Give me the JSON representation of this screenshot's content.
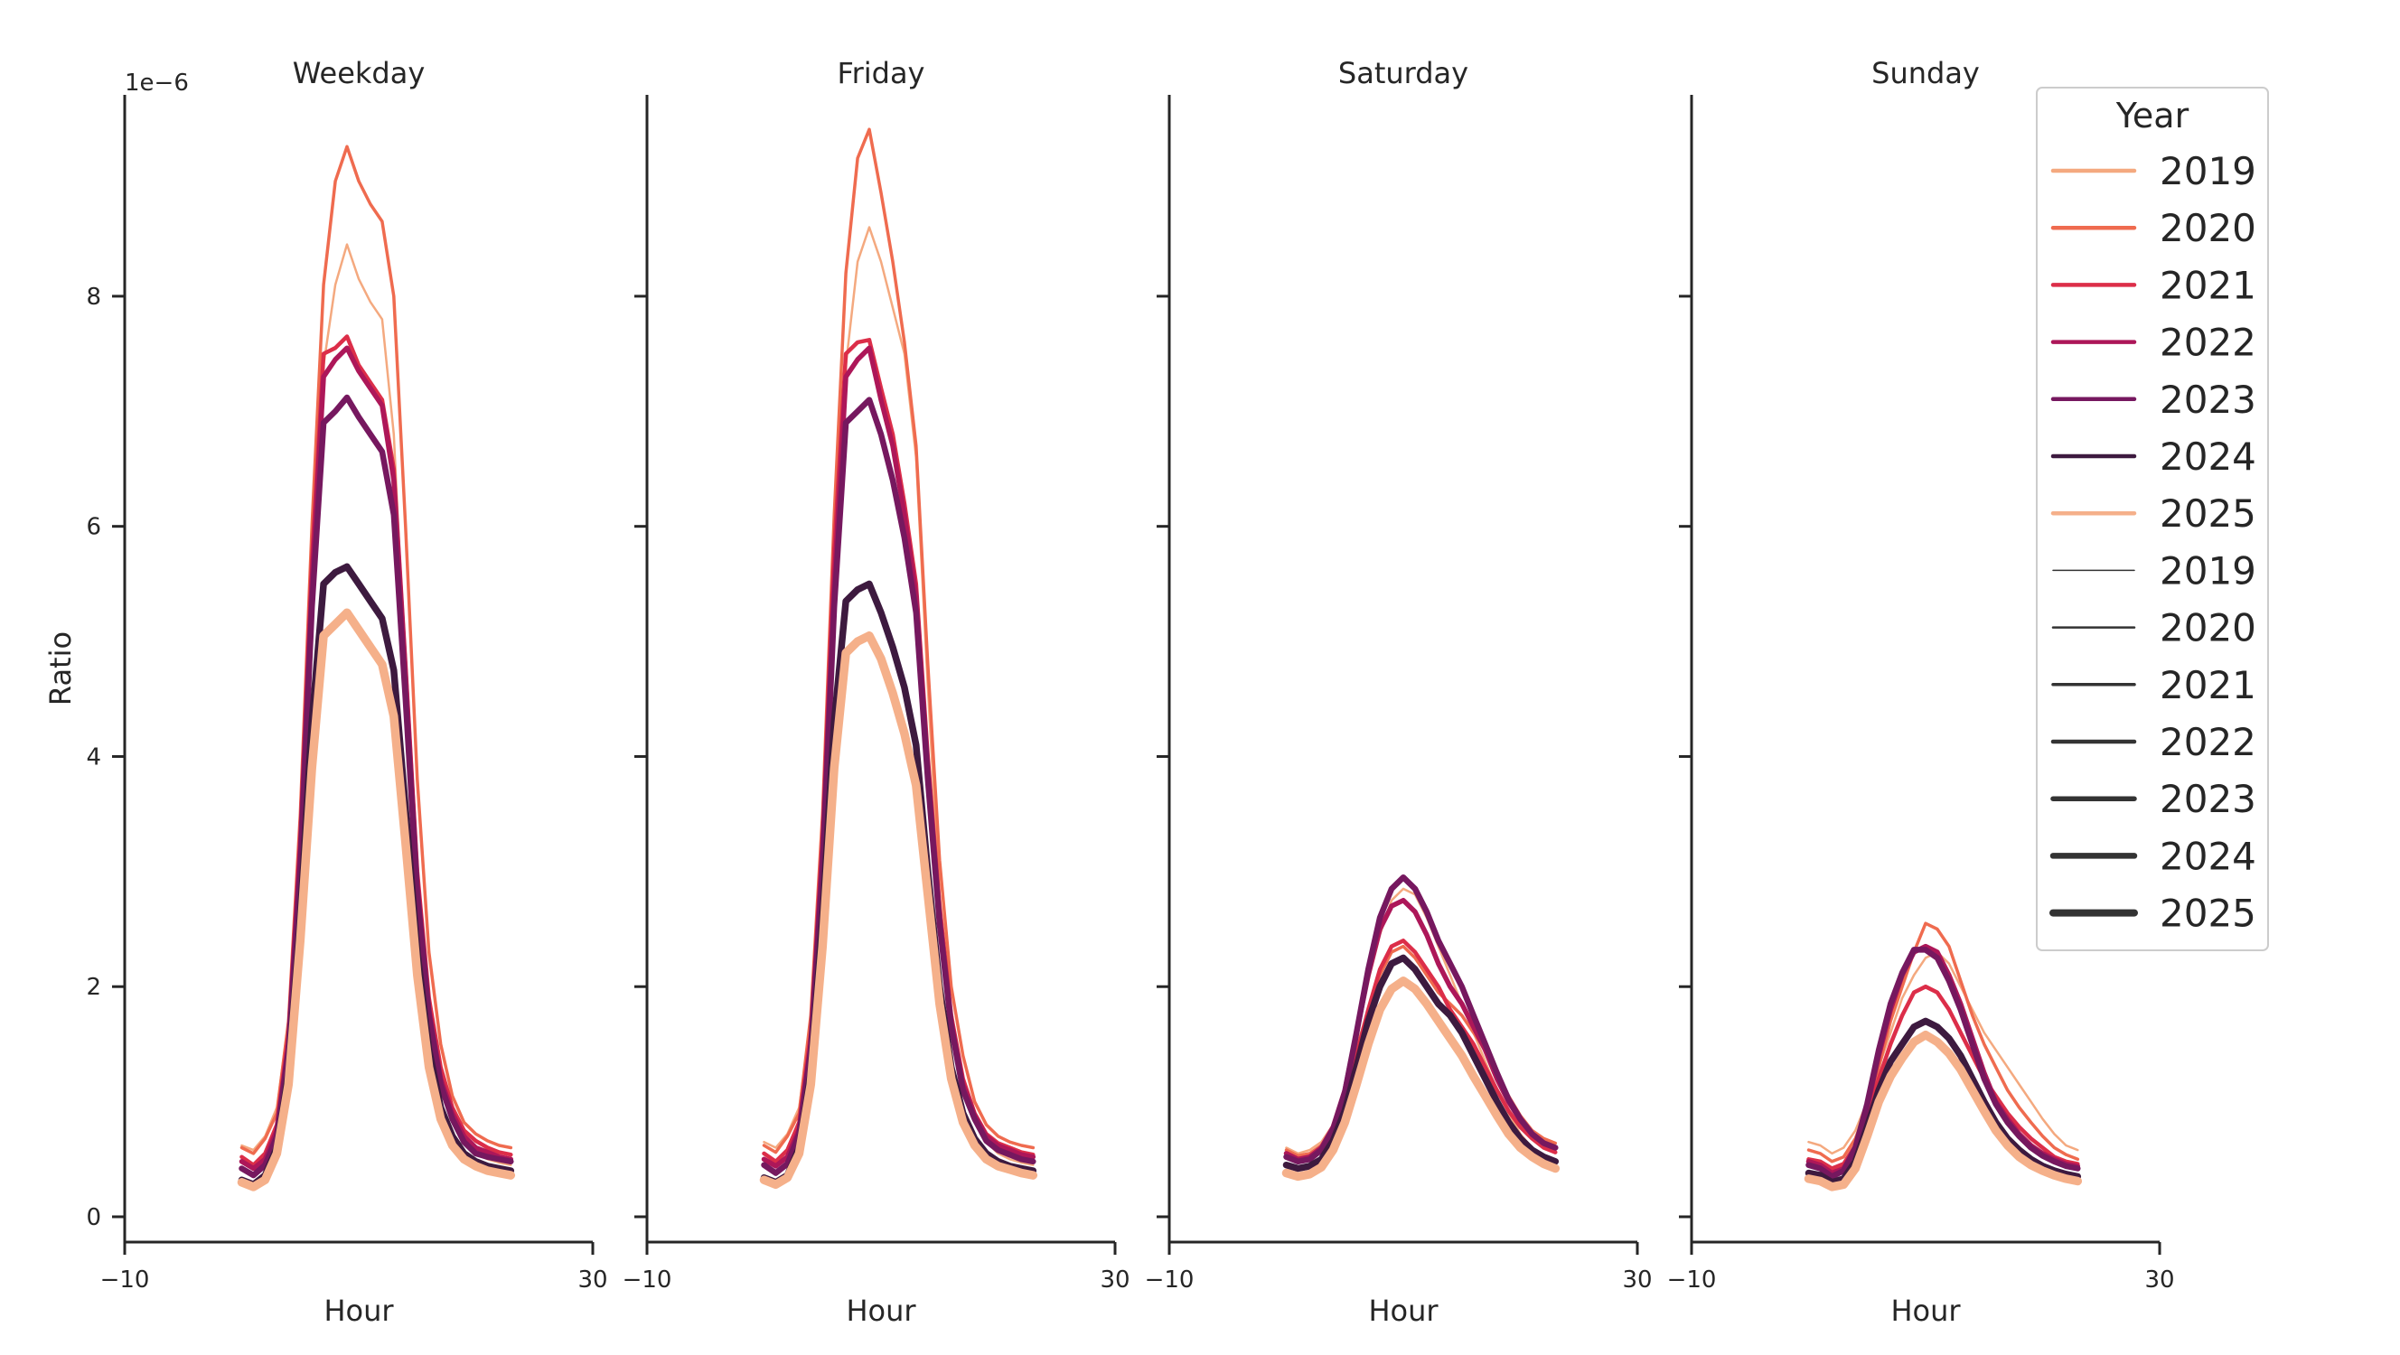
{
  "chart_data": {
    "type": "line",
    "ylabel": "Ratio",
    "y_offset_text": "1e−6",
    "xlabel": "Hour",
    "xlim": [
      -10,
      30
    ],
    "xticks": [
      -10,
      30
    ],
    "ylim": [
      -0.22,
      9.75
    ],
    "yticks": [
      0,
      2,
      4,
      6,
      8
    ],
    "grid": false,
    "legend": {
      "title": "Year",
      "placement": "top-right"
    },
    "hours": [
      0,
      1,
      2,
      3,
      4,
      5,
      6,
      7,
      8,
      9,
      10,
      11,
      12,
      13,
      14,
      15,
      16,
      17,
      18,
      19,
      20,
      21,
      22,
      23
    ],
    "year_colors": {
      "2019": "#f4a97f",
      "2020": "#ef6b4f",
      "2021": "#dc2e49",
      "2022": "#ad1759",
      "2023": "#76185f",
      "2024": "#3d1a3f",
      "2025": "#f5b08a"
    },
    "legend_hue": [
      {
        "label": "2019",
        "color": "#f4a97f"
      },
      {
        "label": "2020",
        "color": "#ef6b4f"
      },
      {
        "label": "2021",
        "color": "#dc2e49"
      },
      {
        "label": "2022",
        "color": "#ad1759"
      },
      {
        "label": "2023",
        "color": "#76185f"
      },
      {
        "label": "2024",
        "color": "#3d1a3f"
      },
      {
        "label": "2025",
        "color": "#f5b08a"
      }
    ],
    "legend_size": [
      {
        "label": "2019"
      },
      {
        "label": "2020"
      },
      {
        "label": "2021"
      },
      {
        "label": "2022"
      },
      {
        "label": "2023"
      },
      {
        "label": "2024"
      },
      {
        "label": "2025"
      }
    ],
    "panels": [
      {
        "title": "Weekday",
        "series": [
          {
            "year": "2019",
            "values": [
              0.62,
              0.58,
              0.7,
              0.95,
              1.7,
              3.3,
              5.6,
              7.4,
              8.1,
              8.45,
              8.15,
              7.95,
              7.8,
              6.8,
              4.7,
              2.85,
              1.8,
              1.2,
              0.85,
              0.65,
              0.55,
              0.5,
              0.47,
              0.45
            ]
          },
          {
            "year": "2020",
            "values": [
              0.6,
              0.55,
              0.68,
              0.9,
              1.7,
              3.5,
              6.0,
              8.1,
              9.0,
              9.3,
              9.0,
              8.8,
              8.65,
              8.0,
              6.0,
              3.8,
              2.3,
              1.5,
              1.05,
              0.82,
              0.72,
              0.66,
              0.62,
              0.6
            ]
          },
          {
            "year": "2021",
            "values": [
              0.52,
              0.45,
              0.55,
              0.8,
              1.6,
              3.3,
              5.7,
              7.5,
              7.55,
              7.65,
              7.4,
              7.25,
              7.1,
              6.5,
              4.8,
              3.0,
              1.9,
              1.3,
              0.95,
              0.75,
              0.66,
              0.6,
              0.56,
              0.54
            ]
          },
          {
            "year": "2022",
            "values": [
              0.48,
              0.42,
              0.5,
              0.75,
              1.5,
              3.2,
              5.5,
              7.3,
              7.45,
              7.55,
              7.35,
              7.2,
              7.05,
              6.4,
              4.7,
              2.9,
              1.8,
              1.2,
              0.9,
              0.7,
              0.6,
              0.56,
              0.52,
              0.5
            ]
          },
          {
            "year": "2023",
            "values": [
              0.42,
              0.36,
              0.45,
              0.7,
              1.45,
              3.0,
              5.3,
              6.9,
              7.0,
              7.12,
              6.95,
              6.8,
              6.65,
              6.1,
              4.5,
              2.8,
              1.75,
              1.15,
              0.85,
              0.65,
              0.55,
              0.52,
              0.5,
              0.48
            ]
          },
          {
            "year": "2024",
            "values": [
              0.32,
              0.28,
              0.36,
              0.6,
              1.25,
              2.6,
              4.3,
              5.5,
              5.6,
              5.65,
              5.5,
              5.35,
              5.2,
              4.75,
              3.55,
              2.3,
              1.45,
              0.95,
              0.7,
              0.55,
              0.48,
              0.44,
              0.42,
              0.4
            ]
          },
          {
            "year": "2025",
            "values": [
              0.3,
              0.26,
              0.32,
              0.55,
              1.15,
              2.4,
              3.9,
              5.05,
              5.15,
              5.25,
              5.1,
              4.95,
              4.8,
              4.35,
              3.25,
              2.1,
              1.3,
              0.85,
              0.62,
              0.5,
              0.44,
              0.4,
              0.38,
              0.36
            ]
          }
        ]
      },
      {
        "title": "Friday",
        "series": [
          {
            "year": "2019",
            "values": [
              0.65,
              0.6,
              0.72,
              0.95,
              1.7,
              3.2,
              5.5,
              7.4,
              8.3,
              8.6,
              8.3,
              7.9,
              7.5,
              6.6,
              4.6,
              2.8,
              1.8,
              1.2,
              0.85,
              0.65,
              0.55,
              0.5,
              0.47,
              0.45
            ]
          },
          {
            "year": "2020",
            "values": [
              0.62,
              0.56,
              0.7,
              0.9,
              1.75,
              3.5,
              6.1,
              8.2,
              9.2,
              9.45,
              8.9,
              8.3,
              7.6,
              6.7,
              4.8,
              3.1,
              2.0,
              1.4,
              1.0,
              0.8,
              0.7,
              0.65,
              0.62,
              0.6
            ]
          },
          {
            "year": "2021",
            "values": [
              0.55,
              0.48,
              0.58,
              0.82,
              1.6,
              3.3,
              5.8,
              7.5,
              7.6,
              7.62,
              7.2,
              6.8,
              6.2,
              5.5,
              4.0,
              2.7,
              1.75,
              1.2,
              0.9,
              0.72,
              0.64,
              0.6,
              0.56,
              0.54
            ]
          },
          {
            "year": "2022",
            "values": [
              0.5,
              0.44,
              0.52,
              0.76,
              1.5,
              3.2,
              5.5,
              7.3,
              7.45,
              7.55,
              7.1,
              6.7,
              6.1,
              5.4,
              3.9,
              2.6,
              1.7,
              1.15,
              0.88,
              0.7,
              0.62,
              0.58,
              0.54,
              0.52
            ]
          },
          {
            "year": "2023",
            "values": [
              0.45,
              0.38,
              0.46,
              0.72,
              1.45,
              3.0,
              5.3,
              6.9,
              7.0,
              7.1,
              6.8,
              6.4,
              5.9,
              5.25,
              3.8,
              2.55,
              1.65,
              1.1,
              0.85,
              0.66,
              0.58,
              0.54,
              0.5,
              0.48
            ]
          },
          {
            "year": "2024",
            "values": [
              0.34,
              0.3,
              0.36,
              0.6,
              1.25,
              2.6,
              4.3,
              5.35,
              5.45,
              5.5,
              5.25,
              4.95,
              4.6,
              4.1,
              3.0,
              2.0,
              1.3,
              0.9,
              0.68,
              0.55,
              0.48,
              0.44,
              0.42,
              0.4
            ]
          },
          {
            "year": "2025",
            "values": [
              0.32,
              0.28,
              0.34,
              0.55,
              1.15,
              2.35,
              3.9,
              4.9,
              5.0,
              5.05,
              4.85,
              4.55,
              4.2,
              3.75,
              2.8,
              1.85,
              1.2,
              0.82,
              0.62,
              0.5,
              0.44,
              0.41,
              0.38,
              0.36
            ]
          }
        ]
      },
      {
        "title": "Saturday",
        "series": [
          {
            "year": "2019",
            "values": [
              0.6,
              0.55,
              0.58,
              0.65,
              0.8,
              1.1,
              1.55,
              2.05,
              2.45,
              2.75,
              2.85,
              2.8,
              2.6,
              2.35,
              2.1,
              1.85,
              1.6,
              1.35,
              1.1,
              0.9,
              0.72,
              0.6,
              0.52,
              0.48
            ]
          },
          {
            "year": "2020",
            "values": [
              0.58,
              0.53,
              0.55,
              0.62,
              0.78,
              1.05,
              1.45,
              1.8,
              2.1,
              2.3,
              2.35,
              2.25,
              2.1,
              1.95,
              1.85,
              1.75,
              1.6,
              1.45,
              1.25,
              1.05,
              0.88,
              0.75,
              0.68,
              0.64
            ]
          },
          {
            "year": "2021",
            "values": [
              0.52,
              0.48,
              0.5,
              0.58,
              0.75,
              1.02,
              1.4,
              1.8,
              2.15,
              2.35,
              2.4,
              2.3,
              2.15,
              2.0,
              1.8,
              1.65,
              1.5,
              1.3,
              1.1,
              0.92,
              0.78,
              0.68,
              0.6,
              0.56
            ]
          },
          {
            "year": "2022",
            "values": [
              0.55,
              0.5,
              0.52,
              0.6,
              0.78,
              1.1,
              1.6,
              2.1,
              2.5,
              2.7,
              2.75,
              2.65,
              2.45,
              2.2,
              2.0,
              1.85,
              1.65,
              1.45,
              1.2,
              1.0,
              0.84,
              0.72,
              0.64,
              0.6
            ]
          },
          {
            "year": "2023",
            "values": [
              0.52,
              0.48,
              0.5,
              0.58,
              0.76,
              1.08,
              1.6,
              2.15,
              2.6,
              2.85,
              2.95,
              2.85,
              2.65,
              2.4,
              2.2,
              2.0,
              1.75,
              1.5,
              1.25,
              1.02,
              0.85,
              0.72,
              0.64,
              0.6
            ]
          },
          {
            "year": "2024",
            "values": [
              0.45,
              0.42,
              0.44,
              0.5,
              0.66,
              0.92,
              1.3,
              1.7,
              2.0,
              2.2,
              2.25,
              2.15,
              2.0,
              1.85,
              1.75,
              1.6,
              1.4,
              1.2,
              1.0,
              0.82,
              0.68,
              0.58,
              0.52,
              0.48
            ]
          },
          {
            "year": "2025",
            "values": [
              0.38,
              0.35,
              0.37,
              0.43,
              0.58,
              0.82,
              1.15,
              1.5,
              1.8,
              1.98,
              2.05,
              1.98,
              1.85,
              1.7,
              1.55,
              1.4,
              1.22,
              1.05,
              0.88,
              0.72,
              0.6,
              0.52,
              0.46,
              0.42
            ]
          }
        ]
      },
      {
        "title": "Sunday",
        "series": [
          {
            "year": "2019",
            "values": [
              0.65,
              0.62,
              0.55,
              0.6,
              0.75,
              1.0,
              1.3,
              1.6,
              1.9,
              2.1,
              2.25,
              2.3,
              2.2,
              2.0,
              1.8,
              1.6,
              1.45,
              1.3,
              1.15,
              1.0,
              0.85,
              0.72,
              0.62,
              0.58
            ]
          },
          {
            "year": "2020",
            "values": [
              0.58,
              0.55,
              0.48,
              0.52,
              0.68,
              0.95,
              1.3,
              1.7,
              2.0,
              2.3,
              2.55,
              2.5,
              2.35,
              2.05,
              1.75,
              1.5,
              1.3,
              1.1,
              0.95,
              0.82,
              0.7,
              0.6,
              0.54,
              0.5
            ]
          },
          {
            "year": "2021",
            "values": [
              0.5,
              0.48,
              0.42,
              0.46,
              0.62,
              0.88,
              1.2,
              1.5,
              1.75,
              1.95,
              2.0,
              1.95,
              1.8,
              1.6,
              1.4,
              1.2,
              1.05,
              0.9,
              0.78,
              0.68,
              0.6,
              0.52,
              0.48,
              0.46
            ]
          },
          {
            "year": "2022",
            "values": [
              0.48,
              0.45,
              0.38,
              0.42,
              0.6,
              0.95,
              1.4,
              1.8,
              2.1,
              2.3,
              2.35,
              2.3,
              2.1,
              1.85,
              1.55,
              1.25,
              1.0,
              0.85,
              0.72,
              0.62,
              0.55,
              0.5,
              0.46,
              0.44
            ]
          },
          {
            "year": "2023",
            "values": [
              0.45,
              0.42,
              0.35,
              0.4,
              0.6,
              0.98,
              1.45,
              1.85,
              2.12,
              2.32,
              2.32,
              2.25,
              2.05,
              1.8,
              1.5,
              1.2,
              0.98,
              0.82,
              0.7,
              0.6,
              0.53,
              0.48,
              0.44,
              0.42
            ]
          },
          {
            "year": "2024",
            "values": [
              0.38,
              0.36,
              0.3,
              0.33,
              0.48,
              0.78,
              1.1,
              1.35,
              1.5,
              1.65,
              1.7,
              1.65,
              1.55,
              1.4,
              1.2,
              1.0,
              0.82,
              0.68,
              0.58,
              0.5,
              0.44,
              0.4,
              0.37,
              0.35
            ]
          },
          {
            "year": "2025",
            "values": [
              0.33,
              0.31,
              0.26,
              0.28,
              0.42,
              0.7,
              1.0,
              1.22,
              1.38,
              1.52,
              1.58,
              1.52,
              1.42,
              1.28,
              1.1,
              0.92,
              0.75,
              0.62,
              0.52,
              0.45,
              0.4,
              0.36,
              0.33,
              0.31
            ]
          }
        ]
      }
    ]
  }
}
